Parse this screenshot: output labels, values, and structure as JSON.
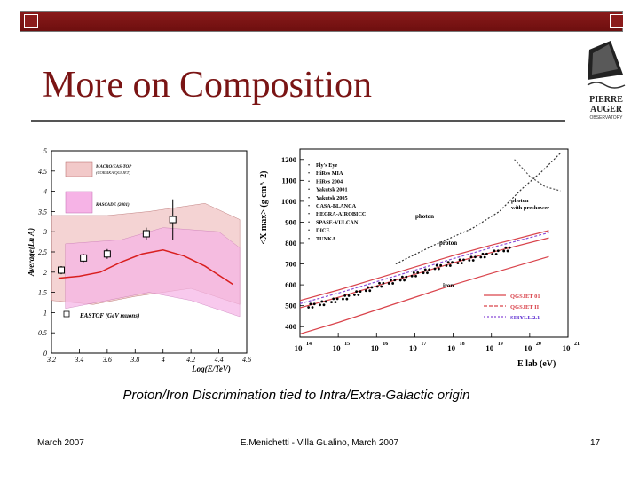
{
  "slide": {
    "title": "More on  Composition",
    "caption": "Proton/Iron Discrimination tied to Intra/Extra-Galactic origin",
    "footer_left": "March 2007",
    "footer_center": "E.Menichetti - Villa Gualino, March 2007",
    "footer_right": "17",
    "logo_text_line1": "PIERRE",
    "logo_text_line2": "AUGER",
    "logo_subtext": "OBSERVATORY",
    "colors": {
      "title": "#7a1414",
      "topbar": "#8a1a1a"
    }
  },
  "chart_data": [
    {
      "type": "line",
      "xlabel": "Log(E/TeV)",
      "ylabel": "Average(Ln A)",
      "xlim": [
        3.2,
        4.6
      ],
      "ylim": [
        0,
        5
      ],
      "x_ticks": [
        "3.2",
        "3.4",
        "3.6",
        "3.8",
        "4",
        "4.2",
        "4.4",
        "4.6"
      ],
      "y_ticks": [
        "0",
        "0.5",
        "1",
        "1.5",
        "2",
        "2.5",
        "3",
        "3.5",
        "4",
        "4.5",
        "5"
      ],
      "legend_bands": [
        "MACRO/EAS-TOP (CORSIKA/QGSJET)",
        "KASCADE (2001)"
      ],
      "legend_points": "EASTOF (GeV muons)",
      "series": [
        {
          "name": "EASTOF (GeV muons)",
          "x": [
            3.27,
            3.43,
            3.6,
            3.88,
            4.07
          ],
          "y": [
            2.05,
            2.35,
            2.45,
            2.95,
            3.3
          ],
          "err": [
            0.1,
            0.1,
            0.12,
            0.15,
            0.5
          ]
        },
        {
          "x": [
            3.25,
            3.4,
            3.55,
            3.7,
            3.85,
            4.0,
            4.15,
            4.3,
            4.5
          ],
          "y": [
            1.85,
            1.9,
            2.0,
            2.25,
            2.45,
            2.55,
            2.4,
            2.15,
            1.7
          ]
        }
      ]
    },
    {
      "type": "line",
      "xlabel": "E lab (eV)",
      "ylabel": "<X max> (g cm^-2)",
      "xlim": [
        14,
        21
      ],
      "ylim": [
        350,
        1250
      ],
      "x_ticks": [
        "10",
        "10",
        "10",
        "10",
        "10",
        "10",
        "10",
        "10"
      ],
      "x_tick_exponents": [
        "14",
        "15",
        "16",
        "17",
        "18",
        "19",
        "20",
        "21"
      ],
      "y_ticks": [
        "400",
        "500",
        "600",
        "700",
        "800",
        "900",
        "1000",
        "1100",
        "1200"
      ],
      "legend": [
        "Fly's Eye",
        "HiRes MIA",
        "HiRes 2004",
        "Yakutsk 2001",
        "Yakutsk 2005",
        "CASA-BLANCA",
        "HEGRA-AIROBICC",
        "SPASE-VULCAN",
        "DICE",
        "TUNKA"
      ],
      "model_legend": [
        "QGSJET 01",
        "QGSJET II",
        "SIBYLL 2.1"
      ],
      "annotations": [
        "photon",
        "photon with preshower",
        "proton",
        "iron"
      ],
      "series": [
        {
          "name": "QGSJET 01",
          "color": "#d9434b",
          "x": [
            14,
            15,
            16,
            17,
            18,
            19,
            20.5
          ],
          "y": [
            525,
            575,
            630,
            685,
            740,
            790,
            860
          ]
        },
        {
          "name": "QGSJET II",
          "color": "#d9434b",
          "x": [
            14,
            15,
            16,
            17,
            18,
            19,
            20.5
          ],
          "y": [
            490,
            540,
            595,
            650,
            705,
            755,
            825
          ]
        },
        {
          "name": "SIBYLL 2.1",
          "color": "#8a4bd6",
          "x": [
            14,
            15,
            16,
            17,
            18,
            19,
            20.5
          ],
          "y": [
            510,
            560,
            615,
            670,
            725,
            778,
            850
          ]
        },
        {
          "name": "iron",
          "color": "#d9434b",
          "x": [
            14,
            15,
            16,
            17,
            18,
            19,
            20.5
          ],
          "y": [
            365,
            420,
            480,
            540,
            600,
            655,
            735
          ]
        },
        {
          "name": "photon",
          "color": "#333333",
          "x": [
            16.5,
            17.5,
            18.5,
            19.2,
            19.8,
            20.3,
            20.8
          ],
          "y": [
            700,
            790,
            870,
            950,
            1060,
            1140,
            1230
          ]
        },
        {
          "name": "photon with preshower",
          "color": "#555555",
          "x": [
            19.6,
            20.0,
            20.4,
            20.8
          ],
          "y": [
            1200,
            1120,
            1070,
            1050
          ]
        },
        {
          "name": "data",
          "color": "#000000",
          "x": [
            14.3,
            14.6,
            14.9,
            15.2,
            15.5,
            15.8,
            16.1,
            16.4,
            16.7,
            17.0,
            17.3,
            17.6,
            17.9,
            18.2,
            18.5,
            18.8,
            19.1,
            19.4
          ],
          "y": [
            500,
            512,
            525,
            540,
            560,
            580,
            600,
            615,
            630,
            650,
            665,
            685,
            700,
            712,
            725,
            740,
            755,
            770
          ]
        }
      ]
    }
  ]
}
